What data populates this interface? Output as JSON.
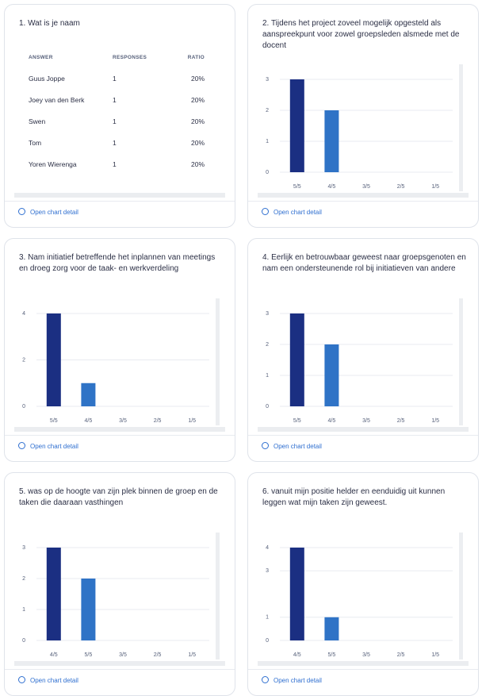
{
  "cards": [
    {
      "title": "1. Wat is je naam",
      "table": {
        "columns": [
          "ANSWER",
          "RESPONSES",
          "RATIO"
        ],
        "rows": [
          [
            "Guus Joppe",
            "1",
            "20%"
          ],
          [
            "Joey van den Berk",
            "1",
            "20%"
          ],
          [
            "Swen",
            "1",
            "20%"
          ],
          [
            "Tom",
            "1",
            "20%"
          ],
          [
            "Yoren Wierenga",
            "1",
            "20%"
          ]
        ]
      },
      "link": "Open chart detail"
    },
    {
      "title": "2. Tijdens het project zoveel mogelijk opgesteld als aanspreekpunt voor zowel groepsleden alsmede met de docent",
      "chart": {
        "type": "bar",
        "categories": [
          "5/5",
          "4/5",
          "3/5",
          "2/5",
          "1/5"
        ],
        "values": [
          3,
          2,
          0,
          0,
          0
        ],
        "colors": [
          "#1b2f82",
          "#2f73c6",
          "#2f73c6",
          "#2f73c6",
          "#2f73c6"
        ],
        "ylim": [
          0,
          3
        ],
        "yticks": [
          0,
          1,
          2,
          3
        ],
        "grid": true
      },
      "link": "Open chart detail"
    },
    {
      "title": "3. Nam initiatief betreffende het inplannen van meetings en droeg zorg voor de taak- en werkverdeling",
      "chart": {
        "type": "bar",
        "categories": [
          "5/5",
          "4/5",
          "3/5",
          "2/5",
          "1/5"
        ],
        "values": [
          4,
          1,
          0,
          0,
          0
        ],
        "colors": [
          "#1b2f82",
          "#2f73c6",
          "#2f73c6",
          "#2f73c6",
          "#2f73c6"
        ],
        "ylim": [
          0,
          4
        ],
        "yticks": [
          0,
          2,
          4
        ],
        "grid": true
      },
      "link": "Open chart detail"
    },
    {
      "title": "4. Eerlijk en betrouwbaar geweest naar groepsgenoten en nam een ondersteunende rol bij initiatieven van andere",
      "chart": {
        "type": "bar",
        "categories": [
          "5/5",
          "4/5",
          "3/5",
          "2/5",
          "1/5"
        ],
        "values": [
          3,
          2,
          0,
          0,
          0
        ],
        "colors": [
          "#1b2f82",
          "#2f73c6",
          "#2f73c6",
          "#2f73c6",
          "#2f73c6"
        ],
        "ylim": [
          0,
          3
        ],
        "yticks": [
          0,
          1,
          2,
          3
        ],
        "grid": true
      },
      "link": "Open chart detail"
    },
    {
      "title": "5. was op de hoogte van zijn plek binnen de groep en de taken die daaraan vasthingen",
      "chart": {
        "type": "bar",
        "categories": [
          "4/5",
          "5/5",
          "3/5",
          "2/5",
          "1/5"
        ],
        "values": [
          3,
          2,
          0,
          0,
          0
        ],
        "colors": [
          "#1b2f82",
          "#2f73c6",
          "#2f73c6",
          "#2f73c6",
          "#2f73c6"
        ],
        "ylim": [
          0,
          3
        ],
        "yticks": [
          0,
          1,
          2,
          3
        ],
        "grid": true
      },
      "link": "Open chart detail"
    },
    {
      "title": "6. vanuit mijn positie helder en eenduidig uit kunnen leggen wat mijn taken zijn geweest.",
      "chart": {
        "type": "bar",
        "categories": [
          "4/5",
          "5/5",
          "3/5",
          "2/5",
          "1/5"
        ],
        "values": [
          4,
          1,
          0,
          0,
          0
        ],
        "colors": [
          "#1b2f82",
          "#2f73c6",
          "#2f73c6",
          "#2f73c6",
          "#2f73c6"
        ],
        "ylim": [
          0,
          4
        ],
        "yticks": [
          0,
          1,
          3,
          4
        ],
        "grid": true
      },
      "link": "Open chart detail"
    }
  ]
}
